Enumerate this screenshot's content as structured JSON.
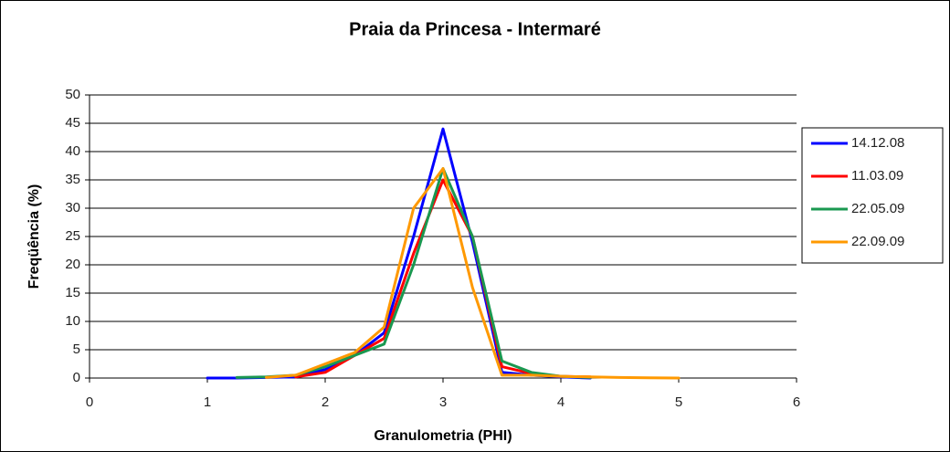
{
  "chart_data": {
    "type": "line",
    "title": "Praia da Princesa - Intermaré",
    "xlabel": "Granulometria (PHI)",
    "ylabel": "Freqüência (%)",
    "x": [
      1,
      1.25,
      1.5,
      1.75,
      2,
      2.25,
      2.5,
      2.75,
      3,
      3.25,
      3.5,
      3.75,
      4,
      4.25,
      4.5,
      4.75,
      5
    ],
    "series": [
      {
        "name": "14.12.08",
        "color": "#0000ff",
        "values": [
          0,
          0,
          0.1,
          0.2,
          1.5,
          4,
          8,
          25,
          44,
          24,
          1,
          0.5,
          0.2,
          0,
          null,
          null,
          null
        ]
      },
      {
        "name": "11.03.09",
        "color": "#ff0000",
        "values": [
          null,
          null,
          null,
          0.2,
          1,
          4,
          7,
          22,
          35,
          25,
          2,
          0.8,
          0.3,
          0.2,
          null,
          null,
          null
        ]
      },
      {
        "name": "22.05.09",
        "color": "#1a9850",
        "values": [
          null,
          0.1,
          0.2,
          0.5,
          2,
          4,
          6,
          20,
          37,
          25,
          3,
          1,
          0.3,
          0.1,
          null,
          null,
          null
        ]
      },
      {
        "name": "22.09.09",
        "color": "#ff9900",
        "values": [
          null,
          null,
          0.1,
          0.5,
          2.5,
          4.5,
          9,
          30,
          37,
          16,
          0.5,
          0.5,
          0.3,
          0.2,
          0.1,
          0.05,
          0
        ]
      }
    ],
    "xlim": [
      0,
      6
    ],
    "xticks": [
      0,
      1,
      2,
      3,
      4,
      5,
      6
    ],
    "ylim": [
      0,
      50
    ],
    "yticks": [
      0,
      5,
      10,
      15,
      20,
      25,
      30,
      35,
      40,
      45,
      50
    ],
    "grid": true,
    "legend": "right"
  }
}
